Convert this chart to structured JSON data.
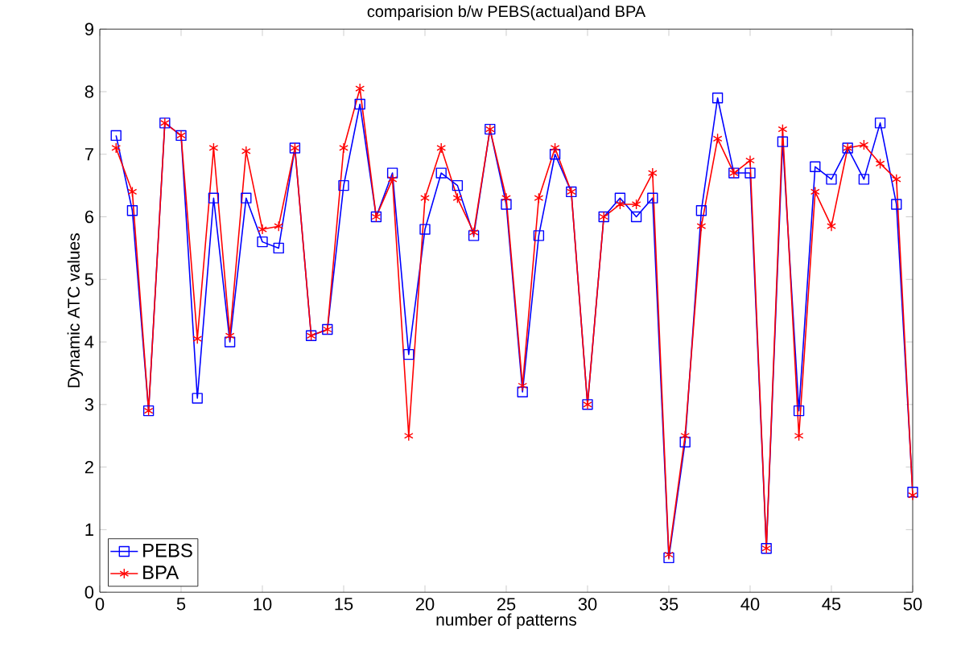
{
  "chart_data": {
    "type": "line",
    "title": "comparision b/w PEBS(actual)and BPA",
    "xlabel": "number of patterns",
    "ylabel": "Dynamic ATC values",
    "x": [
      1,
      2,
      3,
      4,
      5,
      6,
      7,
      8,
      9,
      10,
      11,
      12,
      13,
      14,
      15,
      16,
      17,
      18,
      19,
      20,
      21,
      22,
      23,
      24,
      25,
      26,
      27,
      28,
      29,
      30,
      31,
      32,
      33,
      34,
      35,
      36,
      37,
      38,
      39,
      40,
      41,
      42,
      43,
      44,
      45,
      46,
      47,
      48,
      49,
      50
    ],
    "series": [
      {
        "name": "PEBS",
        "color": "#0000ff",
        "marker": "square",
        "values": [
          7.3,
          6.1,
          2.9,
          7.5,
          7.3,
          3.1,
          6.3,
          4.0,
          6.3,
          5.6,
          5.5,
          7.1,
          4.1,
          4.2,
          6.5,
          7.8,
          6.0,
          6.7,
          3.8,
          5.8,
          6.7,
          6.5,
          5.7,
          7.4,
          6.2,
          3.2,
          5.7,
          7.0,
          6.4,
          3.0,
          6.0,
          6.3,
          6.0,
          6.3,
          0.55,
          2.4,
          6.1,
          7.9,
          6.7,
          6.7,
          0.7,
          7.2,
          2.9,
          6.8,
          6.6,
          7.1,
          6.6,
          7.5,
          6.2,
          1.6
        ]
      },
      {
        "name": "BPA",
        "color": "#ff0000",
        "marker": "cross",
        "values": [
          7.1,
          6.4,
          2.9,
          7.5,
          7.3,
          4.05,
          7.1,
          4.1,
          7.05,
          5.8,
          5.85,
          7.1,
          4.1,
          4.2,
          7.1,
          8.05,
          6.0,
          6.6,
          2.5,
          6.3,
          7.1,
          6.3,
          5.75,
          7.4,
          6.3,
          3.3,
          6.3,
          7.1,
          6.4,
          3.0,
          6.0,
          6.2,
          6.2,
          6.7,
          0.6,
          2.5,
          5.85,
          7.25,
          6.7,
          6.9,
          0.7,
          7.4,
          2.5,
          6.4,
          5.85,
          7.1,
          7.15,
          6.85,
          6.6,
          1.55
        ]
      }
    ],
    "xlim": [
      0,
      50
    ],
    "xticks": [
      0,
      5,
      10,
      15,
      20,
      25,
      30,
      35,
      40,
      45,
      50
    ],
    "ylim": [
      0,
      9
    ],
    "yticks": [
      0,
      1,
      2,
      3,
      4,
      5,
      6,
      7,
      8,
      9
    ],
    "grid": false,
    "legend": "bottom left",
    "line_style": "solid"
  }
}
